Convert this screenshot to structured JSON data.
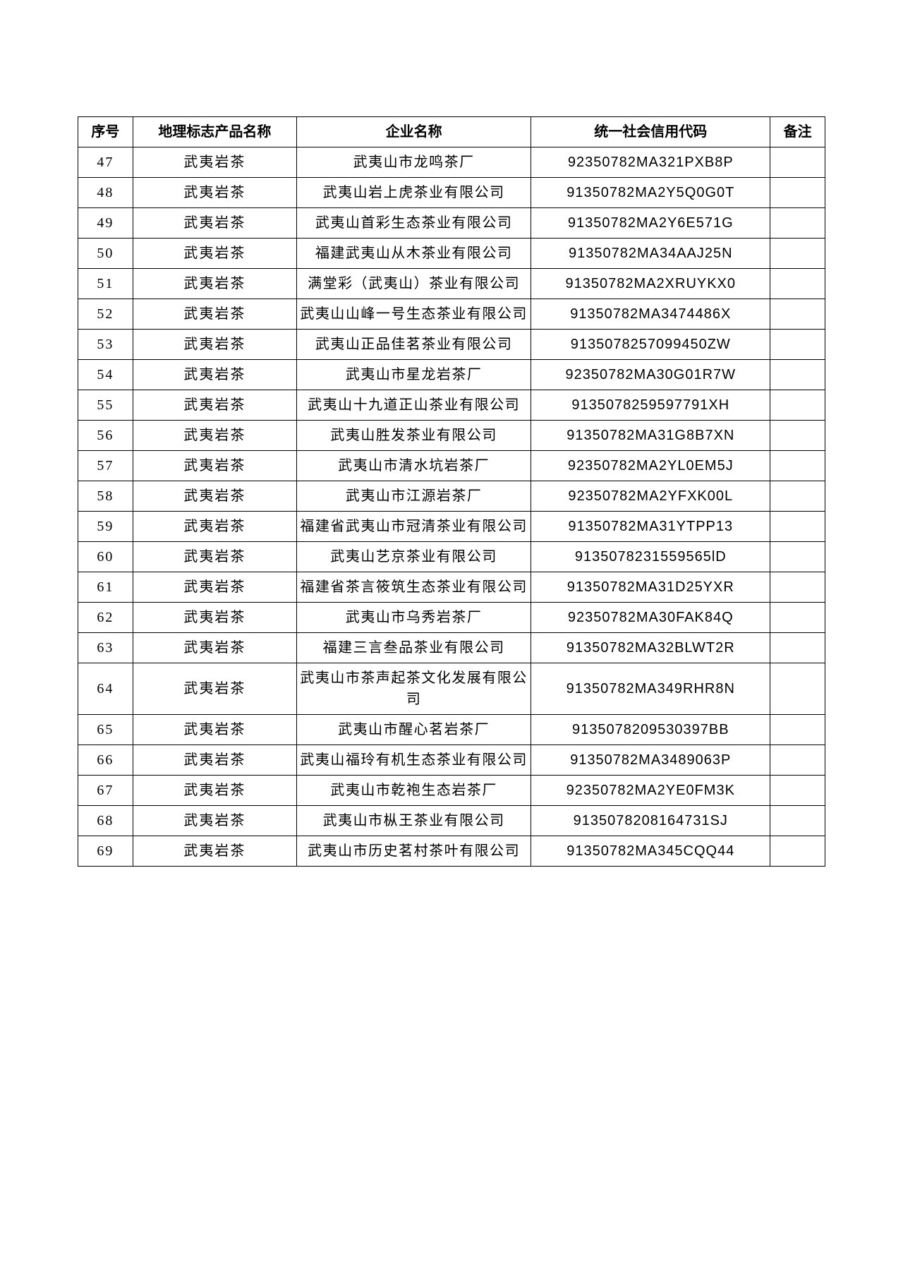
{
  "table": {
    "headers": {
      "seq": "序号",
      "product": "地理标志产品名称",
      "company": "企业名称",
      "code": "统一社会信用代码",
      "remark": "备注"
    },
    "rows": [
      {
        "seq": "47",
        "product": "武夷岩茶",
        "company": "武夷山市龙鸣茶厂",
        "code": "92350782MA321PXB8P",
        "remark": ""
      },
      {
        "seq": "48",
        "product": "武夷岩茶",
        "company": "武夷山岩上虎茶业有限公司",
        "code": "91350782MA2Y5Q0G0T",
        "remark": ""
      },
      {
        "seq": "49",
        "product": "武夷岩茶",
        "company": "武夷山首彩生态茶业有限公司",
        "code": "91350782MA2Y6E571G",
        "remark": ""
      },
      {
        "seq": "50",
        "product": "武夷岩茶",
        "company": "福建武夷山从木茶业有限公司",
        "code": "91350782MA34AAJ25N",
        "remark": ""
      },
      {
        "seq": "51",
        "product": "武夷岩茶",
        "company": "满堂彩（武夷山）茶业有限公司",
        "code": "91350782MA2XRUYKX0",
        "remark": ""
      },
      {
        "seq": "52",
        "product": "武夷岩茶",
        "company": "武夷山山峰一号生态茶业有限公司",
        "code": "91350782MA3474486X",
        "remark": ""
      },
      {
        "seq": "53",
        "product": "武夷岩茶",
        "company": "武夷山正品佳茗茶业有限公司",
        "code": "9135078257099450ZW",
        "remark": ""
      },
      {
        "seq": "54",
        "product": "武夷岩茶",
        "company": "武夷山市星龙岩茶厂",
        "code": "92350782MA30G01R7W",
        "remark": ""
      },
      {
        "seq": "55",
        "product": "武夷岩茶",
        "company": "武夷山十九道正山茶业有限公司",
        "code": "9135078259597791XH",
        "remark": ""
      },
      {
        "seq": "56",
        "product": "武夷岩茶",
        "company": "武夷山胜发茶业有限公司",
        "code": "91350782MA31G8B7XN",
        "remark": ""
      },
      {
        "seq": "57",
        "product": "武夷岩茶",
        "company": "武夷山市清水坑岩茶厂",
        "code": "92350782MA2YL0EM5J",
        "remark": ""
      },
      {
        "seq": "58",
        "product": "武夷岩茶",
        "company": "武夷山市江源岩茶厂",
        "code": "92350782MA2YFXK00L",
        "remark": ""
      },
      {
        "seq": "59",
        "product": "武夷岩茶",
        "company": "福建省武夷山市冠清茶业有限公司",
        "code": "91350782MA31YTPP13",
        "remark": ""
      },
      {
        "seq": "60",
        "product": "武夷岩茶",
        "company": "武夷山艺京茶业有限公司",
        "code": "9135078231559565lD",
        "remark": ""
      },
      {
        "seq": "61",
        "product": "武夷岩茶",
        "company": "福建省茶言筱筑生态茶业有限公司",
        "code": "91350782MA31D25YXR",
        "remark": ""
      },
      {
        "seq": "62",
        "product": "武夷岩茶",
        "company": "武夷山市乌秀岩茶厂",
        "code": "92350782MA30FAK84Q",
        "remark": ""
      },
      {
        "seq": "63",
        "product": "武夷岩茶",
        "company": "福建三言叁品茶业有限公司",
        "code": "91350782MA32BLWT2R",
        "remark": ""
      },
      {
        "seq": "64",
        "product": "武夷岩茶",
        "company": "武夷山市茶声起茶文化发展有限公司",
        "code": "91350782MA349RHR8N",
        "remark": ""
      },
      {
        "seq": "65",
        "product": "武夷岩茶",
        "company": "武夷山市醒心茗岩茶厂",
        "code": "9135078209530397BB",
        "remark": ""
      },
      {
        "seq": "66",
        "product": "武夷岩茶",
        "company": "武夷山福玲有机生态茶业有限公司",
        "code": "91350782MA3489063P",
        "remark": ""
      },
      {
        "seq": "67",
        "product": "武夷岩茶",
        "company": "武夷山市乾袍生态岩茶厂",
        "code": "92350782MA2YE0FM3K",
        "remark": ""
      },
      {
        "seq": "68",
        "product": "武夷岩茶",
        "company": "武夷山市枞王茶业有限公司",
        "code": "9135078208164731SJ",
        "remark": ""
      },
      {
        "seq": "69",
        "product": "武夷岩茶",
        "company": "武夷山市历史茗村茶叶有限公司",
        "code": "91350782MA345CQQ44",
        "remark": ""
      }
    ],
    "column_widths": {
      "seq": 62,
      "product": 185,
      "company": 265,
      "code": 270,
      "remark": 62
    },
    "styling": {
      "border_color": "#000000",
      "background_color": "#ffffff",
      "font_size": 20,
      "header_font_weight": "bold"
    }
  }
}
